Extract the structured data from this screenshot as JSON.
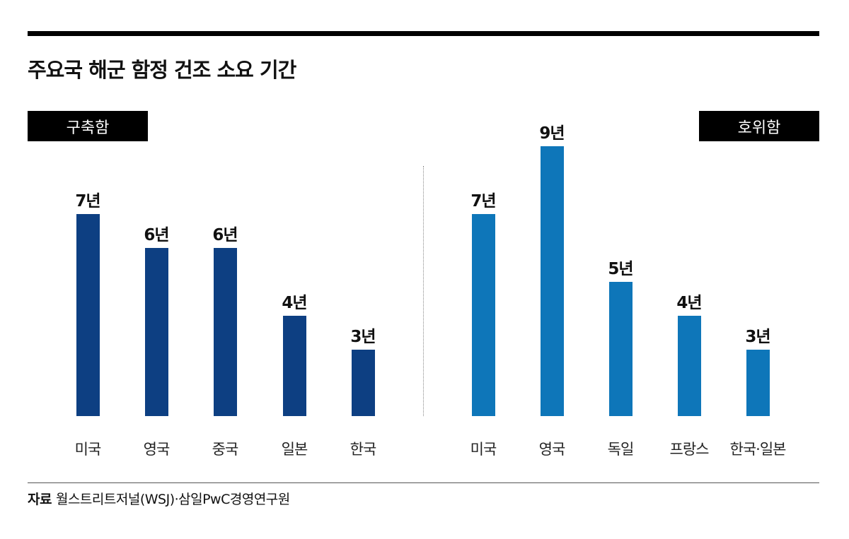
{
  "chart_data": [
    {
      "type": "bar",
      "title": "주요국 해군 함정 건조 소요 기간",
      "panel_label": "구축함",
      "categories": [
        "미국",
        "영국",
        "중국",
        "일본",
        "한국"
      ],
      "values": [
        7,
        6,
        6,
        4,
        3
      ],
      "labels": [
        "7년",
        "6년",
        "6년",
        "4년",
        "3년"
      ],
      "color": "#0d3f82",
      "unit": "년"
    },
    {
      "type": "bar",
      "panel_label": "호위함",
      "categories": [
        "미국",
        "영국",
        "독일",
        "프랑스",
        "한국·일본"
      ],
      "values": [
        7,
        9,
        5,
        4,
        3
      ],
      "labels": [
        "7년",
        "9년",
        "5년",
        "4년",
        "3년"
      ],
      "color": "#0e76b9",
      "unit": "년"
    }
  ],
  "title": "주요국 해군 함정 건조 소요 기간",
  "source_label": "자료",
  "source_text": "월스트리트저널(WSJ)·삼일PwC경영연구원"
}
